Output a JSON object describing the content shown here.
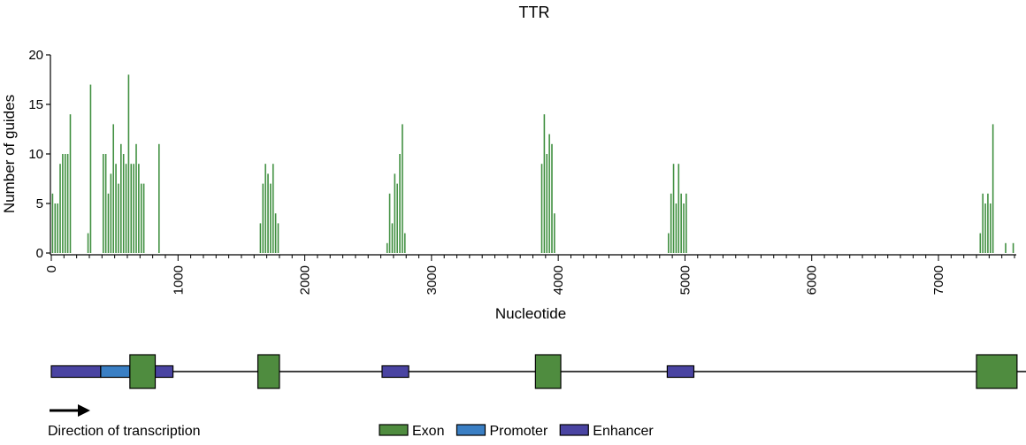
{
  "chart_data": {
    "type": "bar",
    "title": "TTR",
    "xlabel": "Nucleotide",
    "ylabel": "Number of guides",
    "xlim": [
      0,
      7600
    ],
    "ylim": [
      0,
      20
    ],
    "x_ticks": [
      0,
      1000,
      2000,
      3000,
      4000,
      5000,
      6000,
      7000
    ],
    "y_ticks": [
      0,
      5,
      10,
      15,
      20
    ],
    "grid": false,
    "bin_width": 20,
    "series": [
      {
        "color": "#3f8f3f",
        "points": [
          [
            0,
            6
          ],
          [
            20,
            5
          ],
          [
            40,
            5
          ],
          [
            60,
            9
          ],
          [
            80,
            10
          ],
          [
            100,
            10
          ],
          [
            120,
            10
          ],
          [
            140,
            14
          ],
          [
            280,
            2
          ],
          [
            300,
            17
          ],
          [
            400,
            10
          ],
          [
            420,
            10
          ],
          [
            440,
            6
          ],
          [
            460,
            8
          ],
          [
            480,
            13
          ],
          [
            500,
            9
          ],
          [
            520,
            7
          ],
          [
            540,
            11
          ],
          [
            560,
            10
          ],
          [
            580,
            9
          ],
          [
            600,
            18
          ],
          [
            620,
            9
          ],
          [
            640,
            9
          ],
          [
            660,
            11
          ],
          [
            680,
            9
          ],
          [
            700,
            7
          ],
          [
            720,
            7
          ],
          [
            840,
            11
          ],
          [
            1640,
            3
          ],
          [
            1660,
            7
          ],
          [
            1680,
            9
          ],
          [
            1700,
            8
          ],
          [
            1720,
            7
          ],
          [
            1740,
            9
          ],
          [
            1760,
            4
          ],
          [
            1780,
            3
          ],
          [
            2640,
            1
          ],
          [
            2660,
            6
          ],
          [
            2680,
            3
          ],
          [
            2700,
            8
          ],
          [
            2720,
            7
          ],
          [
            2740,
            10
          ],
          [
            2760,
            13
          ],
          [
            2780,
            2
          ],
          [
            3860,
            9
          ],
          [
            3880,
            14
          ],
          [
            3900,
            10
          ],
          [
            3920,
            12
          ],
          [
            3940,
            11
          ],
          [
            3960,
            4
          ],
          [
            4860,
            2
          ],
          [
            4880,
            6
          ],
          [
            4900,
            9
          ],
          [
            4920,
            5
          ],
          [
            4940,
            9
          ],
          [
            4960,
            6
          ],
          [
            4980,
            5
          ],
          [
            5000,
            6
          ],
          [
            7320,
            2
          ],
          [
            7340,
            6
          ],
          [
            7360,
            5
          ],
          [
            7380,
            6
          ],
          [
            7400,
            5
          ],
          [
            7420,
            13
          ],
          [
            7520,
            1
          ],
          [
            7580,
            1
          ]
        ]
      }
    ]
  },
  "gene_map": {
    "direction_label": "Direction of transcription",
    "colors": {
      "exon": "#4f8c3f",
      "promoter": "#3a7fc4",
      "enhancer": "#4a44a2"
    },
    "legend": [
      {
        "type": "exon",
        "label": "Exon"
      },
      {
        "type": "promoter",
        "label": "Promoter"
      },
      {
        "type": "enhancer",
        "label": "Enhancer"
      }
    ],
    "features": [
      {
        "type": "enhancer",
        "start": 0,
        "end": 390
      },
      {
        "type": "promoter",
        "start": 390,
        "end": 620
      },
      {
        "type": "enhancer",
        "start": 780,
        "end": 960
      },
      {
        "type": "exon",
        "start": 620,
        "end": 820
      },
      {
        "type": "exon",
        "start": 1630,
        "end": 1800
      },
      {
        "type": "enhancer",
        "start": 2610,
        "end": 2820
      },
      {
        "type": "exon",
        "start": 3820,
        "end": 4020
      },
      {
        "type": "enhancer",
        "start": 4860,
        "end": 5070
      },
      {
        "type": "exon",
        "start": 7300,
        "end": 7620
      }
    ]
  }
}
